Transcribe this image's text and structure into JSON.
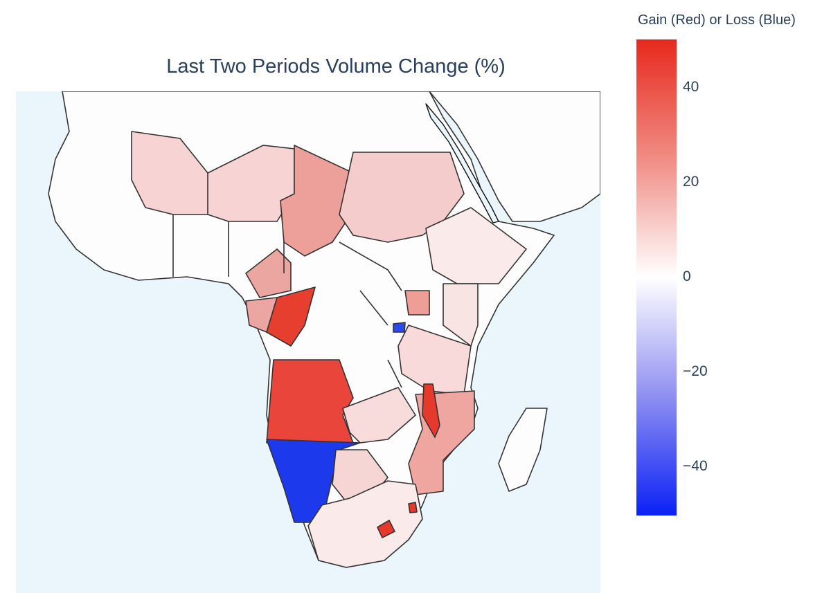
{
  "title": "Last Two Periods Volume Change (%)",
  "colorbar": {
    "title": "Gain (Red) or Loss (Blue)",
    "ticks": [
      {
        "label": "40",
        "value": 40
      },
      {
        "label": "20",
        "value": 20
      },
      {
        "label": "0",
        "value": 0
      },
      {
        "label": "−20",
        "value": -20
      },
      {
        "label": "−40",
        "value": -40
      }
    ],
    "range": [
      -50,
      50
    ],
    "colors": {
      "max": "#e8291d",
      "mid": "#ffffff",
      "min": "#0a21f5"
    }
  },
  "map": {
    "ocean_color": "#eaf6fc",
    "land_color": "#fdfdfd",
    "border_color": "#111111"
  }
}
